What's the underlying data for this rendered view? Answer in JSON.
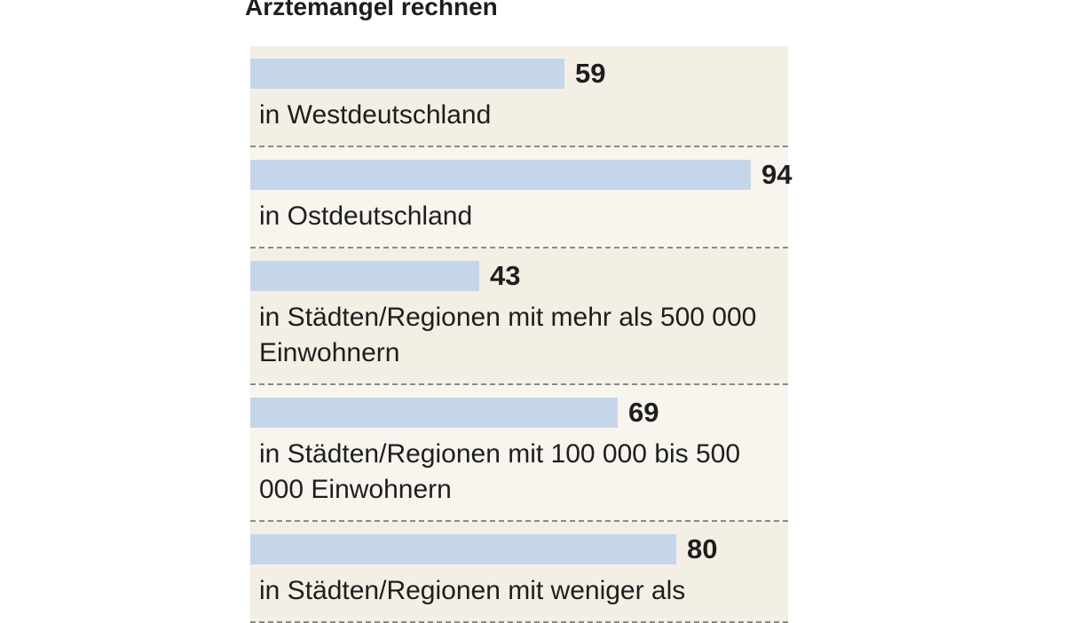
{
  "chart_data": {
    "type": "bar",
    "orientation": "horizontal",
    "title": "Ärztemangel rechnen",
    "categories": [
      "in Westdeutschland",
      "in Ostdeutschland",
      "in Städten/Regionen mit mehr als 500 000 Einwohnern",
      "in Städten/Regionen mit 100 000 bis 500 000 Einwohnern",
      "in Städten/Regionen mit weniger als"
    ],
    "values": [
      59,
      94,
      43,
      69,
      80
    ],
    "color": "#c6d6ea"
  }
}
